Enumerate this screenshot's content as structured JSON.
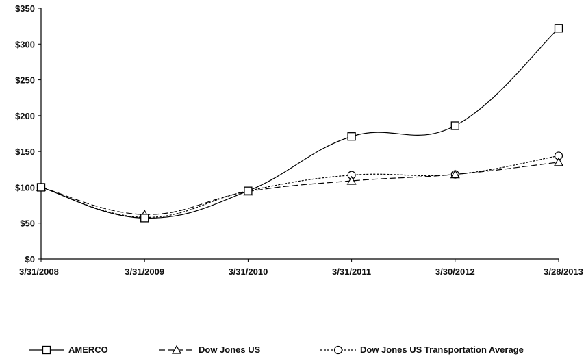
{
  "chart_data": {
    "type": "line",
    "title": "",
    "xlabel": "",
    "ylabel": "",
    "categories": [
      "3/31/2008",
      "3/31/2009",
      "3/31/2010",
      "3/31/2011",
      "3/30/2012",
      "3/28/2013"
    ],
    "ylim": [
      0,
      350
    ],
    "yticks": [
      0,
      50,
      100,
      150,
      200,
      250,
      300,
      350
    ],
    "ytick_labels": [
      "$0",
      "$50",
      "$100",
      "$150",
      "$200",
      "$250",
      "$300",
      "$350"
    ],
    "grid": false,
    "legend_position": "bottom",
    "series": [
      {
        "name": "AMERCO",
        "values": [
          100,
          57,
          95,
          171,
          186,
          322
        ],
        "marker": "square",
        "dash": "solid",
        "color": "#000000"
      },
      {
        "name": "Dow Jones US",
        "values": [
          100,
          62,
          94,
          109,
          118,
          135
        ],
        "marker": "triangle",
        "dash": "dashed",
        "color": "#000000"
      },
      {
        "name": "Dow Jones US Transportation Average",
        "values": [
          100,
          58,
          95,
          117,
          118,
          144
        ],
        "marker": "circle",
        "dash": "dotted",
        "color": "#000000"
      }
    ]
  }
}
